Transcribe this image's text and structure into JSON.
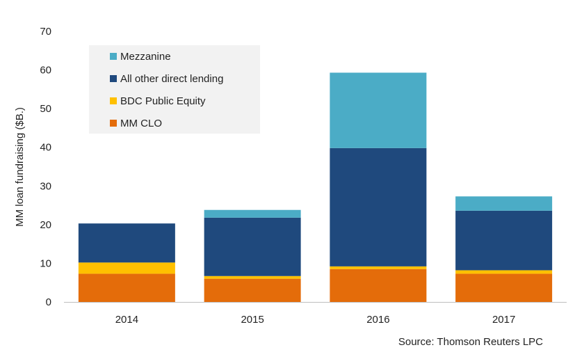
{
  "chart_data": {
    "type": "bar",
    "stacked": true,
    "categories": [
      "2014",
      "2015",
      "2016",
      "2017"
    ],
    "series": [
      {
        "name": "MM CLO",
        "color": "#E46C0A",
        "values": [
          7.3,
          6.0,
          8.5,
          7.3
        ]
      },
      {
        "name": "BDC Public Equity",
        "color": "#FFC000",
        "values": [
          2.9,
          0.7,
          0.7,
          0.9
        ]
      },
      {
        "name": "All other direct lending",
        "color": "#1F497D",
        "values": [
          10.1,
          15.1,
          30.6,
          15.4
        ]
      },
      {
        "name": "Mezzanine",
        "color": "#4BACC6",
        "values": [
          0.0,
          2.0,
          19.5,
          3.7
        ]
      }
    ],
    "ylabel": "MM loan fundraising ($B.)",
    "ylim": [
      0,
      70
    ],
    "yticks": [
      0,
      10,
      20,
      30,
      40,
      50,
      60,
      70
    ],
    "grid": false,
    "legend": {
      "placement": "top-left",
      "entries": [
        "Mezzanine",
        "All other direct lending",
        "BDC Public Equity",
        "MM CLO"
      ],
      "background": "#F2F2F2"
    }
  },
  "source": "Source:  Thomson Reuters LPC"
}
